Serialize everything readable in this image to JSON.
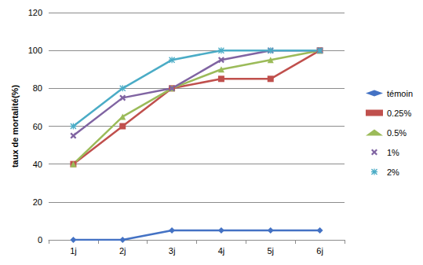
{
  "chart_data": {
    "type": "line",
    "y_label": "taux de mortalité(%)",
    "categories": [
      "1j",
      "2j",
      "3j",
      "4j",
      "5j",
      "6j"
    ],
    "series": [
      {
        "name": "témoin",
        "color": "#4472c4",
        "marker": "diamond",
        "values": [
          0,
          0,
          5,
          5,
          5,
          5
        ]
      },
      {
        "name": "0.25%",
        "color": "#c0504d",
        "marker": "square",
        "values": [
          40,
          60,
          80,
          85,
          85,
          100
        ]
      },
      {
        "name": "0.5%",
        "color": "#9bbb59",
        "marker": "triangle",
        "values": [
          40,
          65,
          80,
          90,
          95,
          100
        ]
      },
      {
        "name": "1%",
        "color": "#8064a2",
        "marker": "x",
        "values": [
          55,
          75,
          80,
          95,
          100,
          100
        ]
      },
      {
        "name": "2%",
        "color": "#4bacc6",
        "marker": "star",
        "values": [
          60,
          80,
          95,
          100,
          100,
          100
        ]
      }
    ],
    "ylim": [
      0,
      120
    ],
    "yticks": [
      0,
      20,
      40,
      60,
      80,
      100,
      120
    ],
    "grid": true,
    "legend": "right"
  }
}
